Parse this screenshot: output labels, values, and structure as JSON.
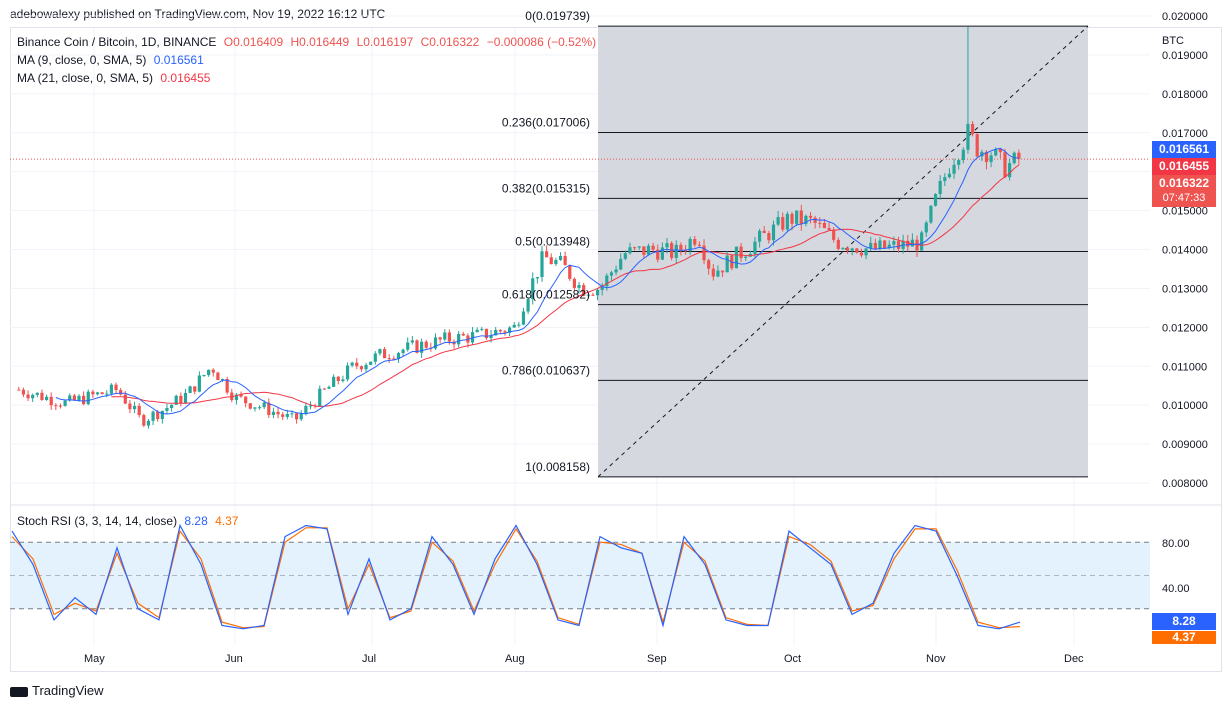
{
  "header": {
    "publish_line": "adebowalexy published on TradingView.com, Nov 19, 2022 16:12 UTC"
  },
  "legend": {
    "symbol": "Binance Coin / Bitcoin, 1D, BINANCE",
    "o": "O0.016409",
    "h": "H0.016449",
    "l": "L0.016197",
    "c": "C0.016322",
    "change": "−0.000086 (−0.52%)",
    "ma9_label": "MA (9, close, 0, SMA, 5)",
    "ma9_value": "0.016561",
    "ma21_label": "MA (21, close, 0, SMA, 5)",
    "ma21_value": "0.016455"
  },
  "price_axis": {
    "unit": "BTC",
    "ticks": [
      "0.020000",
      "0.019000",
      "0.018000",
      "0.017000",
      "0.016000",
      "0.015000",
      "0.014000",
      "0.013000",
      "0.012000",
      "0.011000",
      "0.010000",
      "0.009000",
      "0.008000"
    ],
    "tick_values": [
      0.02,
      0.019,
      0.018,
      0.017,
      0.016,
      0.015,
      0.014,
      0.013,
      0.012,
      0.011,
      0.01,
      0.009,
      0.008
    ],
    "badge_ma9": "0.016561",
    "badge_ma21": "0.016455",
    "badge_price": "0.016322",
    "badge_countdown": "07:47:33"
  },
  "time_axis": {
    "labels": [
      "May",
      "Jun",
      "Jul",
      "Aug",
      "Sep",
      "Oct",
      "Nov",
      "Dec"
    ]
  },
  "rsi": {
    "label": "Stoch RSI (3, 3, 14, 14, close)",
    "k_value": "8.28",
    "d_value": "4.37",
    "ticks": [
      "80.00",
      "40.00"
    ],
    "badge_k": "8.28",
    "badge_d": "4.37"
  },
  "colors": {
    "up": "#26a69a",
    "down": "#ef5350",
    "ma9": "#2962ff",
    "ma21": "#f23645",
    "fib_fill": "#d1d4dc",
    "rsi_k": "#2962ff",
    "rsi_d": "#ff6d00",
    "rsi_band": "#e3f2fd"
  },
  "fib_levels": [
    {
      "label": "0(0.019739)",
      "value": 0.019739
    },
    {
      "label": "0.236(0.017006)",
      "value": 0.017006
    },
    {
      "label": "0.382(0.015315)",
      "value": 0.015315
    },
    {
      "label": "0.5(0.013948)",
      "value": 0.013948
    },
    {
      "label": "0.618(0.012582)",
      "value": 0.012582
    },
    {
      "label": "0.786(0.010637)",
      "value": 0.010637
    },
    {
      "label": "1(0.008158)",
      "value": 0.008158
    }
  ],
  "chart_data": {
    "type": "candlestick",
    "series_ma": [
      {
        "name": "MA (9, close, 0, SMA, 5)",
        "last": 0.016561
      },
      {
        "name": "MA (21, close, 0, SMA, 5)",
        "last": 0.016455
      }
    ],
    "close_path": [
      {
        "x": "Apr 15",
        "y": 0.0104
      },
      {
        "x": "Apr 25",
        "y": 0.01005
      },
      {
        "x": "May 1",
        "y": 0.01025
      },
      {
        "x": "May 6",
        "y": 0.0104
      },
      {
        "x": "May 11",
        "y": 0.0096
      },
      {
        "x": "May 16",
        "y": 0.0099
      },
      {
        "x": "May 21",
        "y": 0.0103
      },
      {
        "x": "May 26",
        "y": 0.011
      },
      {
        "x": "Jun 1",
        "y": 0.0102
      },
      {
        "x": "Jun 8",
        "y": 0.0099
      },
      {
        "x": "Jun 14",
        "y": 0.0096
      },
      {
        "x": "Jun 20",
        "y": 0.0103
      },
      {
        "x": "Jun 27",
        "y": 0.011
      },
      {
        "x": "Jul 3",
        "y": 0.0113
      },
      {
        "x": "Jul 10",
        "y": 0.0115
      },
      {
        "x": "Jul 17",
        "y": 0.0117
      },
      {
        "x": "Jul 24",
        "y": 0.0118
      },
      {
        "x": "Jul 31",
        "y": 0.012
      },
      {
        "x": "Aug 3",
        "y": 0.0127
      },
      {
        "x": "Aug 7",
        "y": 0.0138
      },
      {
        "x": "Aug 11",
        "y": 0.0136
      },
      {
        "x": "Aug 15",
        "y": 0.013
      },
      {
        "x": "Aug 19",
        "y": 0.013
      },
      {
        "x": "Aug 24",
        "y": 0.0139
      },
      {
        "x": "Aug 30",
        "y": 0.014
      },
      {
        "x": "Sep 5",
        "y": 0.0139
      },
      {
        "x": "Sep 10",
        "y": 0.0144
      },
      {
        "x": "Sep 13",
        "y": 0.0134
      },
      {
        "x": "Sep 18",
        "y": 0.0138
      },
      {
        "x": "Sep 24",
        "y": 0.0143
      },
      {
        "x": "Sep 30",
        "y": 0.0148
      },
      {
        "x": "Oct 5",
        "y": 0.0147
      },
      {
        "x": "Oct 10",
        "y": 0.0142
      },
      {
        "x": "Oct 17",
        "y": 0.014
      },
      {
        "x": "Oct 24",
        "y": 0.0141
      },
      {
        "x": "Oct 28",
        "y": 0.0142
      },
      {
        "x": "Nov 1",
        "y": 0.0153
      },
      {
        "x": "Nov 4",
        "y": 0.0162
      },
      {
        "x": "Nov 7",
        "y": 0.0168
      },
      {
        "x": "Nov 8",
        "y": 0.017
      },
      {
        "x": "Nov 10",
        "y": 0.0166
      },
      {
        "x": "Nov 13",
        "y": 0.0165
      },
      {
        "x": "Nov 16",
        "y": 0.0161
      },
      {
        "x": "Nov 19",
        "y": 0.016322
      }
    ],
    "spike_high": {
      "x": "Nov 8",
      "y": 0.01972
    },
    "rsi_k_path": [
      90,
      60,
      10,
      30,
      15,
      75,
      20,
      10,
      95,
      60,
      5,
      2,
      5,
      85,
      95,
      92,
      15,
      65,
      10,
      20,
      85,
      60,
      15,
      65,
      95,
      60,
      10,
      5,
      85,
      75,
      70,
      5,
      85,
      60,
      10,
      5,
      5,
      90,
      75,
      60,
      15,
      25,
      70,
      95,
      90,
      50,
      5,
      2,
      8
    ],
    "rsi_d_path": [
      85,
      65,
      15,
      25,
      18,
      70,
      25,
      12,
      90,
      65,
      8,
      3,
      4,
      80,
      93,
      93,
      20,
      60,
      12,
      18,
      80,
      63,
      18,
      60,
      92,
      63,
      12,
      6,
      80,
      78,
      70,
      8,
      80,
      63,
      12,
      6,
      5,
      85,
      78,
      63,
      18,
      23,
      65,
      92,
      92,
      55,
      8,
      3,
      4
    ]
  }
}
